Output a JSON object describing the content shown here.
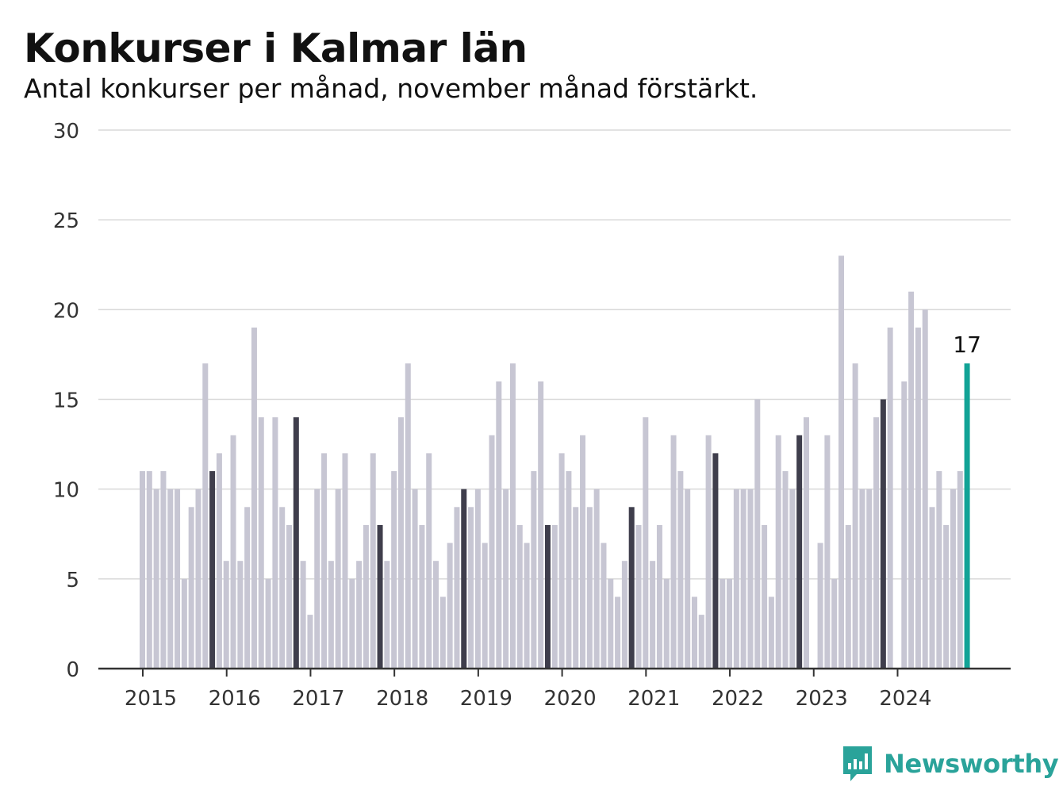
{
  "header": {
    "title": "Konkurser i Kalmar län",
    "subtitle": "Antal konkurser per månad, november månad förstärkt."
  },
  "branding": {
    "logo_text": "Newsworthy",
    "logo_icon": "bar-chart-speech-bubble-icon"
  },
  "colors": {
    "bar": "#c7c6d3",
    "highlight": "#3f3e4c",
    "latest": "#12a396",
    "grid": "#d9d9d9",
    "axis": "#333333"
  },
  "chart_data": {
    "type": "bar",
    "title": "Konkurser i Kalmar län",
    "subtitle": "Antal konkurser per månad, november månad förstärkt.",
    "ylim": [
      0,
      30
    ],
    "yticks": [
      0,
      5,
      10,
      15,
      20,
      25,
      30
    ],
    "xtick_labels": [
      "2015",
      "2016",
      "2017",
      "2018",
      "2019",
      "2020",
      "2021",
      "2022",
      "2023",
      "2024"
    ],
    "start": "2015-01",
    "end": "2024-11",
    "highlight_month": "november",
    "grid": true,
    "legend": "none",
    "annotation": {
      "month": "2024-11",
      "label": "17"
    },
    "values": [
      11,
      11,
      10,
      11,
      10,
      10,
      5,
      9,
      10,
      17,
      11,
      12,
      6,
      13,
      6,
      9,
      19,
      14,
      5,
      14,
      9,
      8,
      14,
      6,
      3,
      10,
      12,
      6,
      10,
      12,
      5,
      6,
      8,
      12,
      8,
      6,
      11,
      14,
      17,
      10,
      8,
      12,
      6,
      4,
      7,
      9,
      10,
      9,
      10,
      7,
      13,
      16,
      10,
      17,
      8,
      7,
      11,
      16,
      8,
      8,
      12,
      11,
      9,
      13,
      9,
      10,
      7,
      5,
      4,
      6,
      9,
      8,
      14,
      6,
      8,
      5,
      13,
      11,
      10,
      4,
      3,
      13,
      12,
      5,
      5,
      10,
      10,
      10,
      15,
      8,
      4,
      13,
      11,
      10,
      13,
      14,
      0,
      7,
      13,
      5,
      23,
      8,
      17,
      10,
      10,
      14,
      15,
      19,
      0,
      16,
      21,
      19,
      20,
      9,
      11,
      8,
      10,
      11,
      17
    ]
  }
}
